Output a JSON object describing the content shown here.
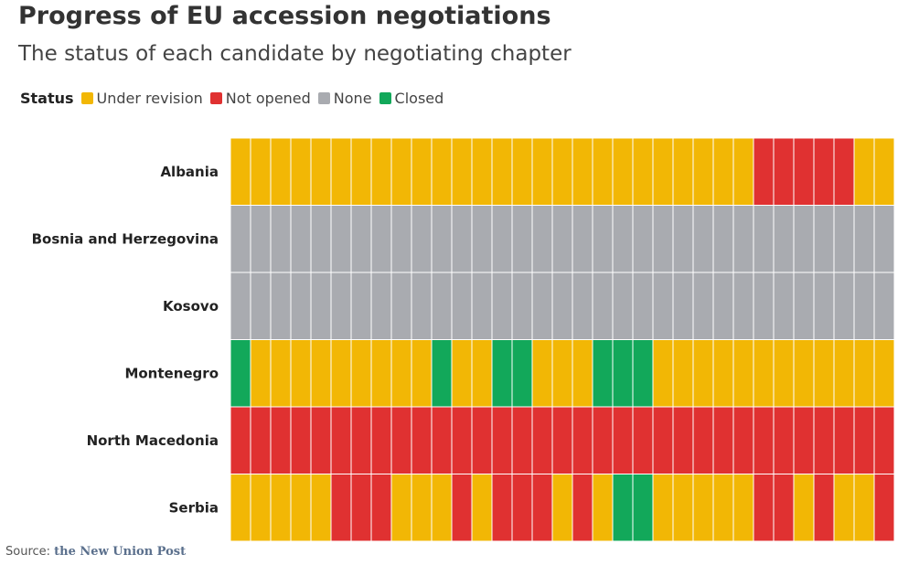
{
  "header": {
    "title": "Progress of EU accession negotiations",
    "subtitle": "The status of each candidate by negotiating chapter"
  },
  "legend": {
    "title": "Status",
    "items": [
      {
        "label": "Under revision",
        "color": "#f2b705"
      },
      {
        "label": "Not opened",
        "color": "#e03131"
      },
      {
        "label": "None",
        "color": "#a9abb0"
      },
      {
        "label": "Closed",
        "color": "#12a85a"
      }
    ]
  },
  "source": {
    "prefix": "Source:",
    "brand": "the New Union Post"
  },
  "chart_data": {
    "type": "heatmap",
    "title": "Progress of EU accession negotiations",
    "subtitle": "The status of each candidate by negotiating chapter",
    "legend_position": "top-left",
    "status_colors": {
      "Under revision": "#f2b705",
      "Not opened": "#e03131",
      "None": "#a9abb0",
      "Closed": "#12a85a"
    },
    "rows": [
      {
        "name": "Albania",
        "cells": [
          "Under revision",
          "Under revision",
          "Under revision",
          "Under revision",
          "Under revision",
          "Under revision",
          "Under revision",
          "Under revision",
          "Under revision",
          "Under revision",
          "Under revision",
          "Under revision",
          "Under revision",
          "Under revision",
          "Under revision",
          "Under revision",
          "Under revision",
          "Under revision",
          "Under revision",
          "Under revision",
          "Under revision",
          "Under revision",
          "Under revision",
          "Under revision",
          "Under revision",
          "Under revision",
          "Not opened",
          "Not opened",
          "Not opened",
          "Not opened",
          "Not opened",
          "Under revision",
          "Under revision"
        ]
      },
      {
        "name": "Bosnia and Herzegovina",
        "cells": [
          "None",
          "None",
          "None",
          "None",
          "None",
          "None",
          "None",
          "None",
          "None",
          "None",
          "None",
          "None",
          "None",
          "None",
          "None",
          "None",
          "None",
          "None",
          "None",
          "None",
          "None",
          "None",
          "None",
          "None",
          "None",
          "None",
          "None",
          "None",
          "None",
          "None",
          "None",
          "None",
          "None"
        ]
      },
      {
        "name": "Kosovo",
        "cells": [
          "None",
          "None",
          "None",
          "None",
          "None",
          "None",
          "None",
          "None",
          "None",
          "None",
          "None",
          "None",
          "None",
          "None",
          "None",
          "None",
          "None",
          "None",
          "None",
          "None",
          "None",
          "None",
          "None",
          "None",
          "None",
          "None",
          "None",
          "None",
          "None",
          "None",
          "None",
          "None",
          "None"
        ]
      },
      {
        "name": "Montenegro",
        "cells": [
          "Closed",
          "Under revision",
          "Under revision",
          "Under revision",
          "Under revision",
          "Under revision",
          "Under revision",
          "Under revision",
          "Under revision",
          "Under revision",
          "Closed",
          "Under revision",
          "Under revision",
          "Closed",
          "Closed",
          "Under revision",
          "Under revision",
          "Under revision",
          "Closed",
          "Closed",
          "Closed",
          "Under revision",
          "Under revision",
          "Under revision",
          "Under revision",
          "Under revision",
          "Under revision",
          "Under revision",
          "Under revision",
          "Under revision",
          "Under revision",
          "Under revision",
          "Under revision"
        ]
      },
      {
        "name": "North Macedonia",
        "cells": [
          "Not opened",
          "Not opened",
          "Not opened",
          "Not opened",
          "Not opened",
          "Not opened",
          "Not opened",
          "Not opened",
          "Not opened",
          "Not opened",
          "Not opened",
          "Not opened",
          "Not opened",
          "Not opened",
          "Not opened",
          "Not opened",
          "Not opened",
          "Not opened",
          "Not opened",
          "Not opened",
          "Not opened",
          "Not opened",
          "Not opened",
          "Not opened",
          "Not opened",
          "Not opened",
          "Not opened",
          "Not opened",
          "Not opened",
          "Not opened",
          "Not opened",
          "Not opened",
          "Not opened"
        ]
      },
      {
        "name": "Serbia",
        "cells": [
          "Under revision",
          "Under revision",
          "Under revision",
          "Under revision",
          "Under revision",
          "Not opened",
          "Not opened",
          "Not opened",
          "Under revision",
          "Under revision",
          "Under revision",
          "Not opened",
          "Under revision",
          "Not opened",
          "Not opened",
          "Not opened",
          "Under revision",
          "Not opened",
          "Under revision",
          "Closed",
          "Closed",
          "Under revision",
          "Under revision",
          "Under revision",
          "Under revision",
          "Under revision",
          "Not opened",
          "Not opened",
          "Under revision",
          "Not opened",
          "Under revision",
          "Under revision",
          "Not opened"
        ]
      }
    ]
  }
}
